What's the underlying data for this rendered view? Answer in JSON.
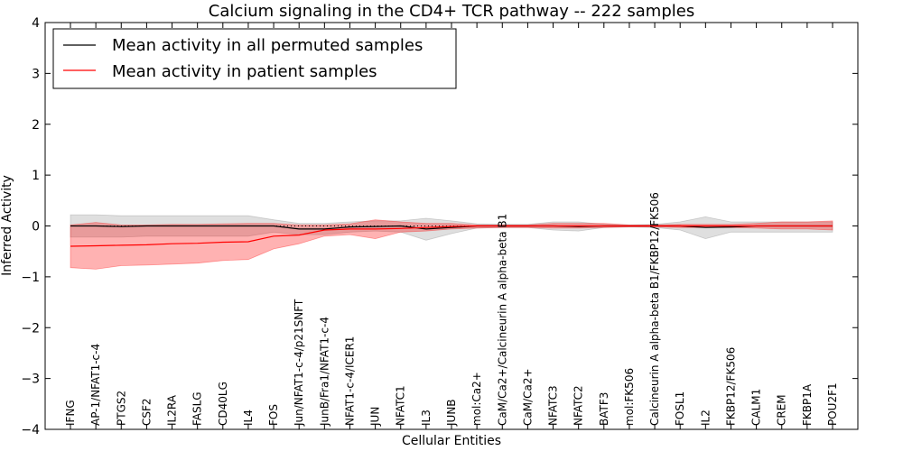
{
  "chart_data": {
    "type": "line",
    "title": "Calcium signaling in the CD4+ TCR pathway -- 222 samples",
    "xlabel": "Cellular Entities",
    "ylabel": "Inferred Activity",
    "ylim": [
      -4,
      4
    ],
    "yticks": [
      -4,
      -3,
      -2,
      -1,
      0,
      1,
      2,
      3,
      4
    ],
    "grid": false,
    "legend_position": "top-left",
    "categories": [
      "IFNG",
      "AP-1/NFAT1-c-4",
      "PTGS2",
      "CSF2",
      "IL2RA",
      "FASLG",
      "CD40LG",
      "IL4",
      "FOS",
      "Jun/NFAT1-c-4/p21SNFT",
      "JunB/Fra1/NFAT1-c-4",
      "NFAT1-c-4/ICER1",
      "JUN",
      "NFATC1",
      "IL3",
      "JUNB",
      "mol:Ca2+",
      "CaM/Ca2+/Calcineurin A alpha-beta B1",
      "CaM/Ca2+",
      "NFATC3",
      "NFATC2",
      "BATF3",
      "mol:FK506",
      "Calcineurin A alpha-beta B1/FKBP12/FK506",
      "FOSL1",
      "IL2",
      "FKBP12/FK506",
      "CALM1",
      "CREM",
      "FKBP1A",
      "POU2F1"
    ],
    "series": [
      {
        "name": "Mean activity in all permuted samples",
        "color": "#000000",
        "band_color": "#808080",
        "values": [
          0.0,
          0.0,
          -0.01,
          0.0,
          0.0,
          0.0,
          0.0,
          0.0,
          0.0,
          -0.06,
          -0.06,
          -0.02,
          -0.01,
          0.0,
          -0.06,
          -0.03,
          0.0,
          0.0,
          0.0,
          0.0,
          -0.01,
          0.0,
          0.0,
          0.0,
          0.0,
          -0.03,
          -0.02,
          0.0,
          0.0,
          0.0,
          0.0
        ],
        "band_upper": [
          0.22,
          0.22,
          0.2,
          0.2,
          0.2,
          0.2,
          0.2,
          0.2,
          0.12,
          0.05,
          0.05,
          0.08,
          0.1,
          0.1,
          0.15,
          0.1,
          0.04,
          0.03,
          0.03,
          0.08,
          0.08,
          0.03,
          0.02,
          0.03,
          0.08,
          0.18,
          0.08,
          0.08,
          0.08,
          0.08,
          0.08
        ],
        "band_lower": [
          -0.22,
          -0.22,
          -0.22,
          -0.2,
          -0.2,
          -0.2,
          -0.2,
          -0.2,
          -0.12,
          -0.17,
          -0.17,
          -0.12,
          -0.1,
          -0.12,
          -0.28,
          -0.15,
          -0.04,
          -0.03,
          -0.03,
          -0.08,
          -0.1,
          -0.03,
          -0.02,
          -0.03,
          -0.08,
          -0.25,
          -0.12,
          -0.12,
          -0.12,
          -0.12,
          -0.12
        ]
      },
      {
        "name": "Mean activity in patient samples",
        "color": "#ff0000",
        "band_color": "#ff0000",
        "values": [
          -0.4,
          -0.39,
          -0.38,
          -0.37,
          -0.35,
          -0.34,
          -0.32,
          -0.31,
          -0.2,
          -0.18,
          -0.08,
          -0.06,
          -0.06,
          -0.05,
          -0.03,
          -0.01,
          0.0,
          0.0,
          0.0,
          0.0,
          0.0,
          0.0,
          0.0,
          0.0,
          0.0,
          0.0,
          0.0,
          0.0,
          0.0,
          0.0,
          0.0
        ],
        "band_upper": [
          0.02,
          0.07,
          0.02,
          0.02,
          0.03,
          0.03,
          0.04,
          0.05,
          0.05,
          0.02,
          0.02,
          0.04,
          0.12,
          0.08,
          0.05,
          0.05,
          0.02,
          0.02,
          0.02,
          0.05,
          0.05,
          0.05,
          0.02,
          0.02,
          0.03,
          0.03,
          0.03,
          0.05,
          0.08,
          0.08,
          0.1
        ],
        "band_lower": [
          -0.82,
          -0.85,
          -0.78,
          -0.77,
          -0.75,
          -0.73,
          -0.68,
          -0.66,
          -0.45,
          -0.35,
          -0.2,
          -0.17,
          -0.25,
          -0.12,
          -0.1,
          -0.06,
          -0.04,
          -0.03,
          -0.03,
          -0.04,
          -0.04,
          -0.03,
          -0.02,
          -0.02,
          -0.03,
          -0.03,
          -0.03,
          -0.04,
          -0.06,
          -0.06,
          -0.08
        ]
      }
    ]
  }
}
